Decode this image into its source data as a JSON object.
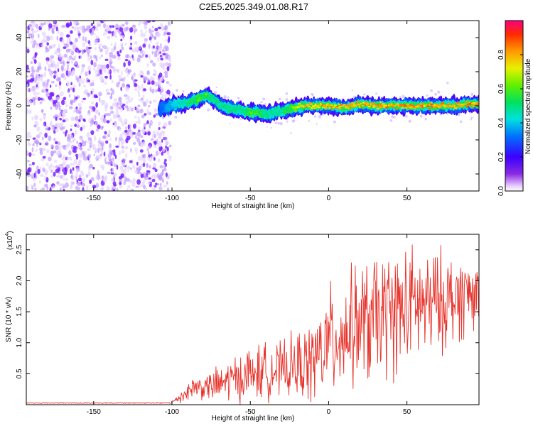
{
  "title": "C2E5.2025.349.01.08.R17",
  "colors": {
    "snr_line": "#e8322a",
    "purple_dot": "#7a1fff",
    "axis": "#000000"
  },
  "chart_data": [
    {
      "type": "heatmap",
      "name": "spectrogram",
      "xlabel": "Height of straight line (km)",
      "ylabel": "Frequency (Hz)",
      "xlim": [
        -193,
        96
      ],
      "ylim": [
        -50,
        50
      ],
      "xticks": [
        -150,
        -100,
        -50,
        0,
        50
      ],
      "yticks": [
        -40,
        -20,
        0,
        20,
        40
      ],
      "colorbar": {
        "label": "Normalized spectral amplitude",
        "range": [
          0,
          1
        ],
        "ticks": [
          "0.0",
          "0.2",
          "0.4",
          "0.6",
          "0.8"
        ],
        "tick_values": [
          0.0,
          0.2,
          0.4,
          0.6,
          0.8
        ]
      },
      "noise_region_km": [
        -193,
        -103
      ],
      "ridge": {
        "x_km": [
          -108,
          -100,
          -90,
          -83,
          -78,
          -74,
          -70,
          -65,
          -60,
          -55,
          -50,
          -45,
          -40,
          -35,
          -30,
          -25,
          -20,
          -15,
          -10,
          -5,
          0,
          10,
          20,
          30,
          40,
          50,
          60,
          70,
          80,
          90,
          96
        ],
        "freq_hz": [
          -2,
          0,
          2,
          4,
          6,
          4,
          1,
          -1,
          -2,
          -3,
          -4,
          -4,
          -5,
          -4,
          -3,
          -2,
          -1,
          0,
          0,
          0,
          0,
          -1,
          1,
          0,
          0,
          0,
          0,
          0,
          0,
          1,
          1
        ],
        "amplitude": [
          0.3,
          0.4,
          0.5,
          0.6,
          0.6,
          0.5,
          0.5,
          0.5,
          0.5,
          0.5,
          0.6,
          0.6,
          0.5,
          0.5,
          0.5,
          0.6,
          0.7,
          0.8,
          0.8,
          0.8,
          0.85,
          0.8,
          0.85,
          0.85,
          0.85,
          0.85,
          0.85,
          0.85,
          0.85,
          0.85,
          0.85
        ]
      }
    },
    {
      "type": "line",
      "name": "snr",
      "xlabel": "Height of straight line (km)",
      "ylabel": "SNR (10 * v/v)",
      "y_multiplier": "(x10",
      "y_multiplier_exp": "4",
      "y_multiplier_close": ")",
      "xlim": [
        -193,
        96
      ],
      "ylim": [
        0,
        2.75
      ],
      "xticks": [
        -150,
        -100,
        -50,
        0,
        50
      ],
      "yticks": [
        "0.5",
        "1.0",
        "1.5",
        "2.0",
        "2.5"
      ],
      "ytick_values": [
        0.5,
        1.0,
        1.5,
        2.0,
        2.5
      ],
      "envelope_x_km": [
        -193,
        -110,
        -100,
        -95,
        -90,
        -85,
        -80,
        -75,
        -70,
        -65,
        -60,
        -55,
        -50,
        -45,
        -40,
        -35,
        -30,
        -25,
        -20,
        -15,
        -10,
        -5,
        0,
        5,
        10,
        15,
        20,
        25,
        30,
        35,
        40,
        45,
        50,
        55,
        60,
        65,
        70,
        75,
        80,
        85,
        90,
        96
      ],
      "envelope_mean": [
        0.02,
        0.02,
        0.04,
        0.12,
        0.22,
        0.3,
        0.28,
        0.3,
        0.32,
        0.38,
        0.42,
        0.45,
        0.5,
        0.52,
        0.55,
        0.55,
        0.55,
        0.6,
        0.62,
        0.65,
        0.7,
        0.85,
        1.0,
        1.1,
        1.15,
        1.25,
        1.3,
        1.3,
        1.4,
        1.45,
        1.5,
        1.5,
        1.55,
        1.6,
        1.6,
        1.6,
        1.65,
        1.7,
        1.7,
        1.75,
        1.8,
        1.8
      ],
      "envelope_spread": [
        0.0,
        0.0,
        0.03,
        0.1,
        0.15,
        0.2,
        0.2,
        0.25,
        0.3,
        0.35,
        0.4,
        0.4,
        0.45,
        0.45,
        0.45,
        0.45,
        0.45,
        0.5,
        0.55,
        0.6,
        0.7,
        0.8,
        0.9,
        0.9,
        0.9,
        0.95,
        1.0,
        1.05,
        1.05,
        1.05,
        1.05,
        1.0,
        1.0,
        0.95,
        0.9,
        0.9,
        0.85,
        0.8,
        0.75,
        0.7,
        0.65,
        0.6
      ]
    }
  ]
}
